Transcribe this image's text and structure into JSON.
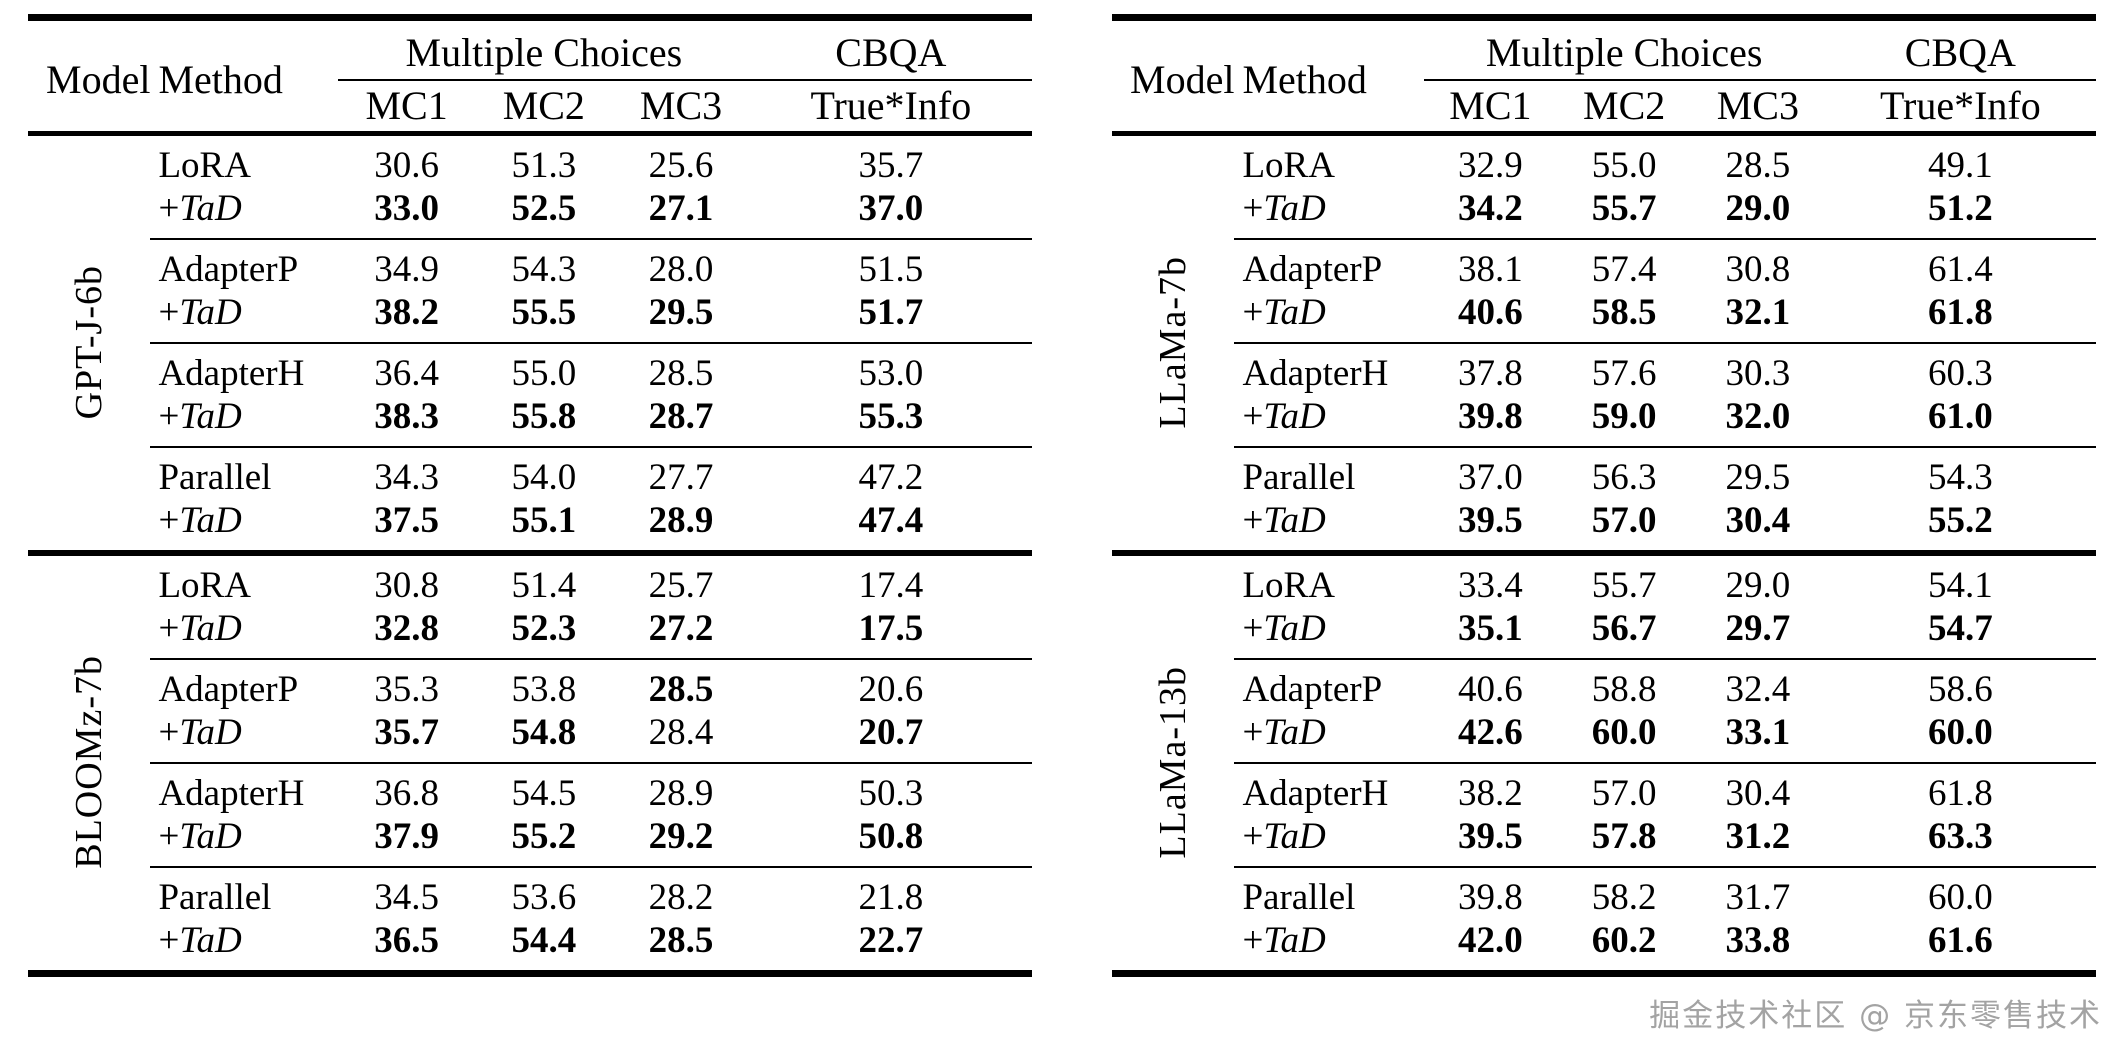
{
  "header": {
    "model": "Model",
    "method": "Method",
    "multiple_choices": "Multiple Choices",
    "cbqa": "CBQA",
    "subcolumns": [
      "MC1",
      "MC2",
      "MC3",
      "True*Info"
    ]
  },
  "watermark": {
    "text": "掘金技术社区 @ 京东零售技术",
    "color": "#8f8f8f"
  },
  "colors": {
    "text": "#000000",
    "background": "#ffffff",
    "rule": "#000000"
  },
  "tables": [
    {
      "name": "left",
      "blocks": [
        {
          "model": "GPT-J-6b",
          "groups": [
            {
              "rows": [
                {
                  "method_prefix": "",
                  "method_name": "LoRA",
                  "method_italic": false,
                  "values": [
                    "30.6",
                    "51.3",
                    "25.6",
                    "35.7"
                  ],
                  "bold": [
                    false,
                    false,
                    false,
                    false
                  ]
                },
                {
                  "method_prefix": "+",
                  "method_name": "TaD",
                  "method_italic": true,
                  "values": [
                    "33.0",
                    "52.5",
                    "27.1",
                    "37.0"
                  ],
                  "bold": [
                    true,
                    true,
                    true,
                    true
                  ]
                }
              ]
            },
            {
              "rows": [
                {
                  "method_prefix": "",
                  "method_name": "AdapterP",
                  "method_italic": false,
                  "values": [
                    "34.9",
                    "54.3",
                    "28.0",
                    "51.5"
                  ],
                  "bold": [
                    false,
                    false,
                    false,
                    false
                  ]
                },
                {
                  "method_prefix": "+",
                  "method_name": "TaD",
                  "method_italic": true,
                  "values": [
                    "38.2",
                    "55.5",
                    "29.5",
                    "51.7"
                  ],
                  "bold": [
                    true,
                    true,
                    true,
                    true
                  ]
                }
              ]
            },
            {
              "rows": [
                {
                  "method_prefix": "",
                  "method_name": "AdapterH",
                  "method_italic": false,
                  "values": [
                    "36.4",
                    "55.0",
                    "28.5",
                    "53.0"
                  ],
                  "bold": [
                    false,
                    false,
                    false,
                    false
                  ]
                },
                {
                  "method_prefix": "+",
                  "method_name": "TaD",
                  "method_italic": true,
                  "values": [
                    "38.3",
                    "55.8",
                    "28.7",
                    "55.3"
                  ],
                  "bold": [
                    true,
                    true,
                    true,
                    true
                  ]
                }
              ]
            },
            {
              "rows": [
                {
                  "method_prefix": "",
                  "method_name": "Parallel",
                  "method_italic": false,
                  "values": [
                    "34.3",
                    "54.0",
                    "27.7",
                    "47.2"
                  ],
                  "bold": [
                    false,
                    false,
                    false,
                    false
                  ]
                },
                {
                  "method_prefix": "+",
                  "method_name": "TaD",
                  "method_italic": true,
                  "values": [
                    "37.5",
                    "55.1",
                    "28.9",
                    "47.4"
                  ],
                  "bold": [
                    true,
                    true,
                    true,
                    true
                  ]
                }
              ]
            }
          ]
        },
        {
          "model": "BLOOMz-7b",
          "groups": [
            {
              "rows": [
                {
                  "method_prefix": "",
                  "method_name": "LoRA",
                  "method_italic": false,
                  "values": [
                    "30.8",
                    "51.4",
                    "25.7",
                    "17.4"
                  ],
                  "bold": [
                    false,
                    false,
                    false,
                    false
                  ]
                },
                {
                  "method_prefix": "+",
                  "method_name": "TaD",
                  "method_italic": true,
                  "values": [
                    "32.8",
                    "52.3",
                    "27.2",
                    "17.5"
                  ],
                  "bold": [
                    true,
                    true,
                    true,
                    true
                  ]
                }
              ]
            },
            {
              "rows": [
                {
                  "method_prefix": "",
                  "method_name": "AdapterP",
                  "method_italic": false,
                  "values": [
                    "35.3",
                    "53.8",
                    "28.5",
                    "20.6"
                  ],
                  "bold": [
                    false,
                    false,
                    true,
                    false
                  ]
                },
                {
                  "method_prefix": "+",
                  "method_name": "TaD",
                  "method_italic": true,
                  "values": [
                    "35.7",
                    "54.8",
                    "28.4",
                    "20.7"
                  ],
                  "bold": [
                    true,
                    true,
                    false,
                    true
                  ]
                }
              ]
            },
            {
              "rows": [
                {
                  "method_prefix": "",
                  "method_name": "AdapterH",
                  "method_italic": false,
                  "values": [
                    "36.8",
                    "54.5",
                    "28.9",
                    "50.3"
                  ],
                  "bold": [
                    false,
                    false,
                    false,
                    false
                  ]
                },
                {
                  "method_prefix": "+",
                  "method_name": "TaD",
                  "method_italic": true,
                  "values": [
                    "37.9",
                    "55.2",
                    "29.2",
                    "50.8"
                  ],
                  "bold": [
                    true,
                    true,
                    true,
                    true
                  ]
                }
              ]
            },
            {
              "rows": [
                {
                  "method_prefix": "",
                  "method_name": "Parallel",
                  "method_italic": false,
                  "values": [
                    "34.5",
                    "53.6",
                    "28.2",
                    "21.8"
                  ],
                  "bold": [
                    false,
                    false,
                    false,
                    false
                  ]
                },
                {
                  "method_prefix": "+",
                  "method_name": "TaD",
                  "method_italic": true,
                  "values": [
                    "36.5",
                    "54.4",
                    "28.5",
                    "22.7"
                  ],
                  "bold": [
                    true,
                    true,
                    true,
                    true
                  ]
                }
              ]
            }
          ]
        }
      ]
    },
    {
      "name": "right",
      "blocks": [
        {
          "model": "LLaMa-7b",
          "groups": [
            {
              "rows": [
                {
                  "method_prefix": "",
                  "method_name": "LoRA",
                  "method_italic": false,
                  "values": [
                    "32.9",
                    "55.0",
                    "28.5",
                    "49.1"
                  ],
                  "bold": [
                    false,
                    false,
                    false,
                    false
                  ]
                },
                {
                  "method_prefix": "+",
                  "method_name": "TaD",
                  "method_italic": true,
                  "values": [
                    "34.2",
                    "55.7",
                    "29.0",
                    "51.2"
                  ],
                  "bold": [
                    true,
                    true,
                    true,
                    true
                  ]
                }
              ]
            },
            {
              "rows": [
                {
                  "method_prefix": "",
                  "method_name": "AdapterP",
                  "method_italic": false,
                  "values": [
                    "38.1",
                    "57.4",
                    "30.8",
                    "61.4"
                  ],
                  "bold": [
                    false,
                    false,
                    false,
                    false
                  ]
                },
                {
                  "method_prefix": "+",
                  "method_name": "TaD",
                  "method_italic": true,
                  "values": [
                    "40.6",
                    "58.5",
                    "32.1",
                    "61.8"
                  ],
                  "bold": [
                    true,
                    true,
                    true,
                    true
                  ]
                }
              ]
            },
            {
              "rows": [
                {
                  "method_prefix": "",
                  "method_name": "AdapterH",
                  "method_italic": false,
                  "values": [
                    "37.8",
                    "57.6",
                    "30.3",
                    "60.3"
                  ],
                  "bold": [
                    false,
                    false,
                    false,
                    false
                  ]
                },
                {
                  "method_prefix": "+",
                  "method_name": "TaD",
                  "method_italic": true,
                  "values": [
                    "39.8",
                    "59.0",
                    "32.0",
                    "61.0"
                  ],
                  "bold": [
                    true,
                    true,
                    true,
                    true
                  ]
                }
              ]
            },
            {
              "rows": [
                {
                  "method_prefix": "",
                  "method_name": "Parallel",
                  "method_italic": false,
                  "values": [
                    "37.0",
                    "56.3",
                    "29.5",
                    "54.3"
                  ],
                  "bold": [
                    false,
                    false,
                    false,
                    false
                  ]
                },
                {
                  "method_prefix": "+",
                  "method_name": "TaD",
                  "method_italic": true,
                  "values": [
                    "39.5",
                    "57.0",
                    "30.4",
                    "55.2"
                  ],
                  "bold": [
                    true,
                    true,
                    true,
                    true
                  ]
                }
              ]
            }
          ]
        },
        {
          "model": "LLaMa-13b",
          "groups": [
            {
              "rows": [
                {
                  "method_prefix": "",
                  "method_name": "LoRA",
                  "method_italic": false,
                  "values": [
                    "33.4",
                    "55.7",
                    "29.0",
                    "54.1"
                  ],
                  "bold": [
                    false,
                    false,
                    false,
                    false
                  ]
                },
                {
                  "method_prefix": "+",
                  "method_name": "TaD",
                  "method_italic": true,
                  "values": [
                    "35.1",
                    "56.7",
                    "29.7",
                    "54.7"
                  ],
                  "bold": [
                    true,
                    true,
                    true,
                    true
                  ]
                }
              ]
            },
            {
              "rows": [
                {
                  "method_prefix": "",
                  "method_name": "AdapterP",
                  "method_italic": false,
                  "values": [
                    "40.6",
                    "58.8",
                    "32.4",
                    "58.6"
                  ],
                  "bold": [
                    false,
                    false,
                    false,
                    false
                  ]
                },
                {
                  "method_prefix": "+",
                  "method_name": "TaD",
                  "method_italic": true,
                  "values": [
                    "42.6",
                    "60.0",
                    "33.1",
                    "60.0"
                  ],
                  "bold": [
                    true,
                    true,
                    true,
                    true
                  ]
                }
              ]
            },
            {
              "rows": [
                {
                  "method_prefix": "",
                  "method_name": "AdapterH",
                  "method_italic": false,
                  "values": [
                    "38.2",
                    "57.0",
                    "30.4",
                    "61.8"
                  ],
                  "bold": [
                    false,
                    false,
                    false,
                    false
                  ]
                },
                {
                  "method_prefix": "+",
                  "method_name": "TaD",
                  "method_italic": true,
                  "values": [
                    "39.5",
                    "57.8",
                    "31.2",
                    "63.3"
                  ],
                  "bold": [
                    true,
                    true,
                    true,
                    true
                  ]
                }
              ]
            },
            {
              "rows": [
                {
                  "method_prefix": "",
                  "method_name": "Parallel",
                  "method_italic": false,
                  "values": [
                    "39.8",
                    "58.2",
                    "31.7",
                    "60.0"
                  ],
                  "bold": [
                    false,
                    false,
                    false,
                    false
                  ]
                },
                {
                  "method_prefix": "+",
                  "method_name": "TaD",
                  "method_italic": true,
                  "values": [
                    "42.0",
                    "60.2",
                    "33.8",
                    "61.6"
                  ],
                  "bold": [
                    true,
                    true,
                    true,
                    true
                  ]
                }
              ]
            }
          ]
        }
      ]
    }
  ]
}
